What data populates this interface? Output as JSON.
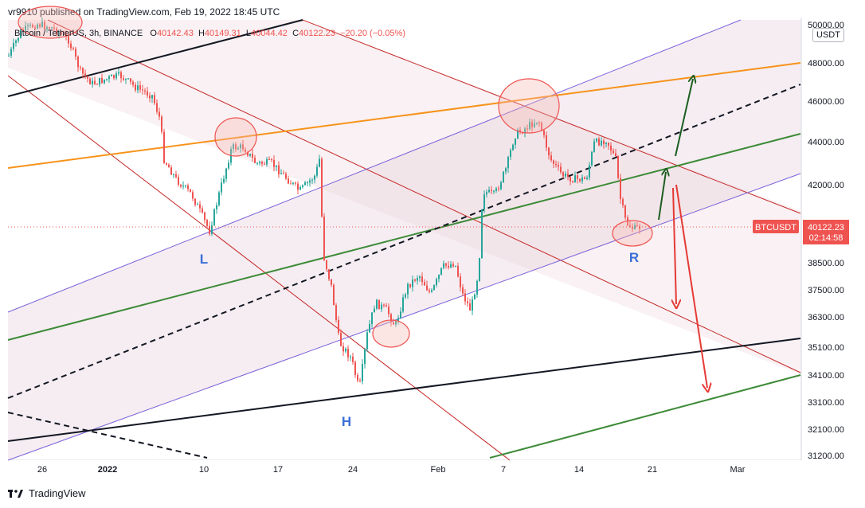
{
  "header": {
    "published": "vr9910 published on TradingView.com, Feb 19, 2022 18:45 UTC"
  },
  "symbol": {
    "name": "Bitcoin / TetherUS, 3h, BINANCE",
    "open_label": "O",
    "open": "40142.43",
    "high_label": "H",
    "high": "40149.31",
    "low_label": "L",
    "low": "40044.42",
    "close_label": "C",
    "close": "40122.23",
    "change": "−20.20 (−0.05%)"
  },
  "currency_badge": "USDT",
  "price_tag": {
    "symbol": "BTCUSDT",
    "price": "40122.23",
    "countdown": "02:14:58",
    "color": "#ef5350"
  },
  "annotations": {
    "left_shoulder": "L",
    "head": "H",
    "right_shoulder": "R"
  },
  "footer": {
    "brand": "TradingView"
  },
  "chart_data": {
    "type": "candlestick",
    "y_axis_labels": [
      "50000.00",
      "48000.00",
      "46000.00",
      "44000.00",
      "42000.00",
      "38500.00",
      "37500.00",
      "36300.00",
      "35100.00",
      "34100.00",
      "33100.00",
      "32100.00",
      "31200.00"
    ],
    "y_scale": "log",
    "ylim": [
      31200,
      50000
    ],
    "x_axis_labels": [
      "26",
      "2022",
      "10",
      "17",
      "24",
      "Feb",
      "7",
      "14",
      "21",
      "Mar"
    ],
    "colors": {
      "up": "#26a69a",
      "down": "#ef5350",
      "orange_line": "#f7931a",
      "green_line": "#3d8b37",
      "purple_channel": "#7b61d9",
      "dark_red_channel": "#c62828",
      "black_line": "#131722",
      "arrow_green": "#1b5e20",
      "arrow_red": "#e53935",
      "circle": "#ef5350"
    }
  }
}
